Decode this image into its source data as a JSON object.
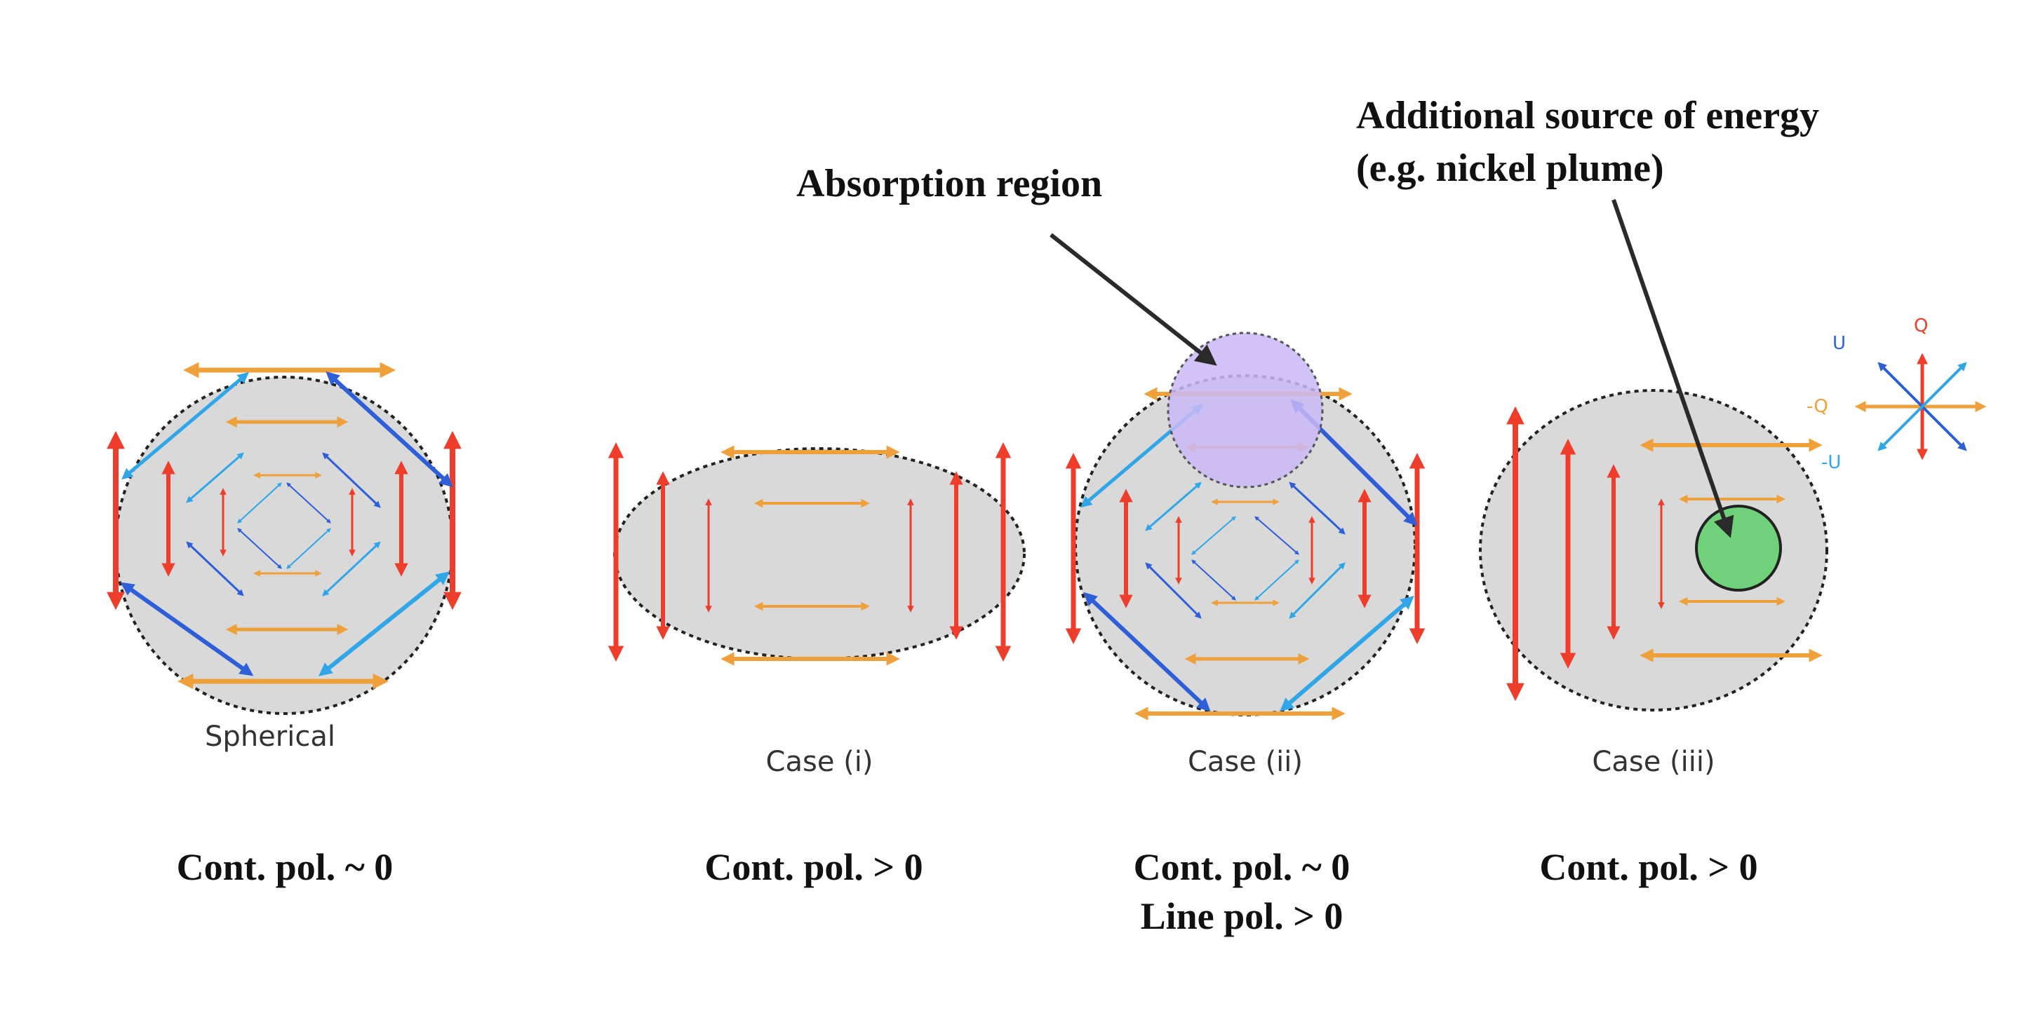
{
  "colors": {
    "red": "#ee3d2b",
    "orange": "#f0a03a",
    "light_blue": "#2ea6e8",
    "dark_blue": "#2e5fd8",
    "body_fill": "#d9d9d9",
    "absorption_fill": "#c9b8f7",
    "plume_fill": "#6fd27a",
    "arrow": "#2a2a2a",
    "text": "#111111"
  },
  "panels": [
    {
      "id": "spherical",
      "caption": "Spherical",
      "result": [
        "Cont. pol. ~ 0"
      ]
    },
    {
      "id": "case-i",
      "caption": "Case (i)",
      "result": [
        "Cont. pol. > 0"
      ]
    },
    {
      "id": "case-ii",
      "caption": "Case (ii)",
      "result": [
        "Cont. pol. ~ 0",
        "Line pol. > 0"
      ]
    },
    {
      "id": "case-iii",
      "caption": "Case (iii)",
      "result": [
        "Cont. pol. > 0"
      ]
    }
  ],
  "annotations": {
    "absorption": "Absorption region",
    "energy_line1": "Additional source of energy",
    "energy_line2": "(e.g. nickel plume)"
  },
  "stokes_legend": {
    "q_plus": "Q",
    "q_minus": "-Q",
    "u_plus": "U",
    "u_minus": "-U"
  },
  "icons": [
    "arrow-double-red",
    "arrow-double-orange",
    "arrow-double-blue"
  ]
}
